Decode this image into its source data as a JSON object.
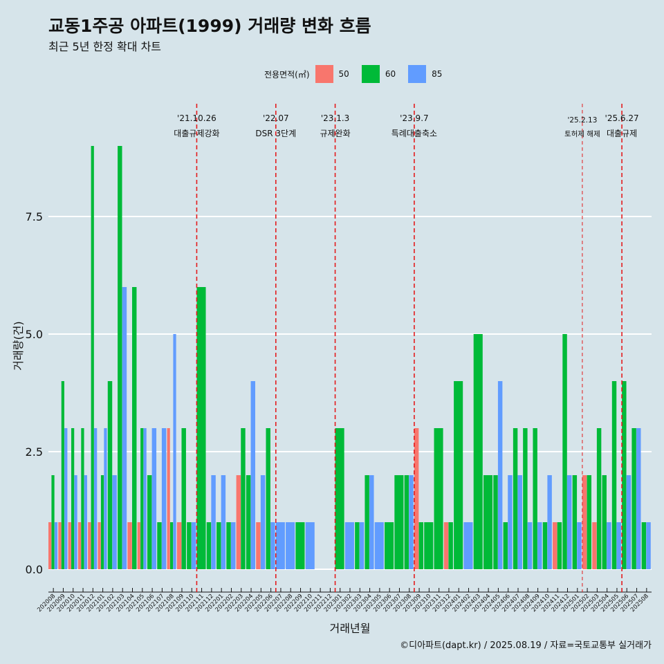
{
  "title": "교동1주공 아파트(1999) 거래량 변화 흐름",
  "subtitle": "최근 5년 한정 확대 차트",
  "caption": "©디아파트(dapt.kr) / 2025.08.19 / 자료=국토교통부 실거래가",
  "legend": {
    "title": "전용면적(㎡)",
    "items": [
      {
        "label": "50",
        "color": "#f8766d"
      },
      {
        "label": "60",
        "color": "#00ba38"
      },
      {
        "label": "85",
        "color": "#619cff"
      }
    ]
  },
  "chart_data": {
    "type": "bar",
    "xlabel": "거래년월",
    "ylabel": "거래량(건)",
    "ylim": [
      0,
      9
    ],
    "yticks": [
      "0.0",
      "2.5",
      "5.0",
      "7.5"
    ],
    "ytick_values": [
      0,
      2.5,
      5,
      7.5
    ],
    "categories": [
      "202008",
      "202009",
      "202010",
      "202011",
      "202012",
      "202101",
      "202102",
      "202103",
      "202104",
      "202105",
      "202106",
      "202107",
      "202108",
      "202109",
      "202110",
      "202111",
      "202112",
      "202201",
      "202202",
      "202203",
      "202204",
      "202205",
      "202206",
      "202207",
      "202208",
      "202209",
      "202210",
      "202211",
      "202212",
      "202301",
      "202302",
      "202303",
      "202304",
      "202305",
      "202306",
      "202307",
      "202308",
      "202309",
      "202310",
      "202311",
      "202312",
      "202401",
      "202402",
      "202403",
      "202404",
      "202405",
      "202406",
      "202407",
      "202408",
      "202409",
      "202410",
      "202411",
      "202412",
      "202501",
      "202502",
      "202503",
      "202504",
      "202505",
      "202506",
      "202507",
      "202508"
    ],
    "series": [
      {
        "name": "50",
        "values": [
          1,
          1,
          1,
          1,
          1,
          1,
          0,
          0,
          1,
          1,
          0,
          0,
          3,
          1,
          0,
          0,
          0,
          0,
          0,
          2,
          0,
          1,
          0,
          0,
          0,
          0,
          0,
          0,
          0,
          0,
          0,
          0,
          0,
          0,
          0,
          0,
          0,
          3,
          0,
          0,
          1,
          0,
          0,
          0,
          0,
          0,
          0,
          0,
          0,
          0,
          0,
          1,
          0,
          0,
          2,
          1,
          0,
          0,
          0,
          0,
          0
        ]
      },
      {
        "name": "60",
        "values": [
          2,
          4,
          3,
          3,
          9,
          2,
          4,
          9,
          6,
          3,
          2,
          1,
          1,
          3,
          1,
          6,
          1,
          1,
          1,
          3,
          2,
          0,
          3,
          0,
          0,
          1,
          0,
          0,
          0,
          3,
          0,
          1,
          2,
          0,
          1,
          2,
          2,
          1,
          1,
          3,
          1,
          4,
          0,
          5,
          2,
          2,
          1,
          3,
          3,
          3,
          1,
          1,
          5,
          2,
          2,
          3,
          2,
          4,
          4,
          3,
          1
        ]
      },
      {
        "name": "85",
        "values": [
          1,
          3,
          2,
          2,
          3,
          3,
          2,
          6,
          0,
          3,
          3,
          3,
          5,
          0,
          1,
          0,
          2,
          2,
          1,
          0,
          4,
          2,
          1,
          1,
          1,
          0,
          1,
          0,
          0,
          0,
          1,
          1,
          2,
          1,
          0,
          0,
          2,
          0,
          0,
          0,
          0,
          0,
          1,
          0,
          0,
          4,
          2,
          2,
          1,
          1,
          2,
          0,
          2,
          1,
          0,
          0,
          1,
          1,
          2,
          3,
          1
        ]
      }
    ],
    "events": [
      {
        "date": "'21.10.26",
        "label": "대출규제강화",
        "after": "202110",
        "style": "dashed"
      },
      {
        "date": "'22.07",
        "label": "DSR 3단계",
        "after": "202206",
        "style": "dashed"
      },
      {
        "date": "'23.1.3",
        "label": "규제완화",
        "after": "202212",
        "style": "dashed"
      },
      {
        "date": "'23.9.7",
        "label": "특례대출축소",
        "after": "202308",
        "style": "dashed"
      },
      {
        "date": "'25.2.13",
        "label": "토허제 해제",
        "after": "202501",
        "style": "thin"
      },
      {
        "date": "'25.6.27",
        "label": "대출규제",
        "after": "202505",
        "style": "dashed"
      }
    ]
  }
}
